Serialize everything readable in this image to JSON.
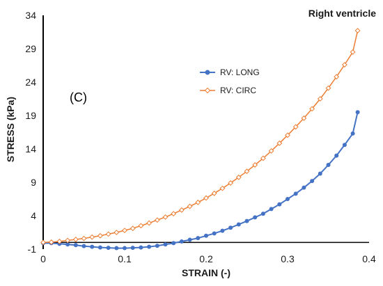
{
  "chart_data": {
    "type": "line",
    "title": "Right ventricle",
    "panel_label": "(C)",
    "xlabel": "STRAIN (-)",
    "ylabel": "STRESS (kPa)",
    "xlim": [
      0,
      0.4
    ],
    "ylim": [
      -1,
      34
    ],
    "x_ticks": [
      0,
      0.1,
      0.2,
      0.3,
      0.4
    ],
    "x_tick_labels": [
      "0",
      "0.1",
      "0.2",
      "0.3",
      "0.4"
    ],
    "y_ticks": [
      -1,
      4,
      9,
      14,
      19,
      24,
      29,
      34
    ],
    "y_tick_labels": [
      "-1",
      "4",
      "9",
      "14",
      "19",
      "24",
      "29",
      "34"
    ],
    "grid": false,
    "legend_position": "center-left",
    "x": [
      0,
      0.01,
      0.02,
      0.03,
      0.04,
      0.05,
      0.06,
      0.07,
      0.08,
      0.09,
      0.1,
      0.11,
      0.12,
      0.13,
      0.14,
      0.15,
      0.16,
      0.17,
      0.18,
      0.19,
      0.2,
      0.21,
      0.22,
      0.23,
      0.24,
      0.25,
      0.26,
      0.27,
      0.28,
      0.29,
      0.3,
      0.31,
      0.32,
      0.33,
      0.34,
      0.35,
      0.36,
      0.37,
      0.38,
      0.386
    ],
    "series": [
      {
        "name": "RV: LONG",
        "color": "#4472C4",
        "marker": "circle",
        "values": [
          -0.1,
          -0.1,
          -0.2,
          -0.3,
          -0.4,
          -0.55,
          -0.65,
          -0.75,
          -0.8,
          -0.85,
          -0.85,
          -0.8,
          -0.75,
          -0.65,
          -0.5,
          -0.3,
          -0.1,
          0.15,
          0.4,
          0.65,
          1.0,
          1.35,
          1.75,
          2.2,
          2.7,
          3.2,
          3.75,
          4.3,
          5.0,
          5.7,
          6.5,
          7.3,
          8.2,
          9.2,
          10.3,
          11.6,
          13.0,
          14.6,
          16.3,
          19.5
        ]
      },
      {
        "name": "RV: CIRC",
        "color": "#ED7D31",
        "marker": "diamond-open",
        "values": [
          0.0,
          0.05,
          0.15,
          0.3,
          0.45,
          0.6,
          0.8,
          1.0,
          1.25,
          1.5,
          1.8,
          2.1,
          2.5,
          2.9,
          3.35,
          3.8,
          4.3,
          4.85,
          5.4,
          6.0,
          6.65,
          7.35,
          8.1,
          8.9,
          9.75,
          10.65,
          11.6,
          12.6,
          13.7,
          14.85,
          16.05,
          17.3,
          18.6,
          20.0,
          21.5,
          23.1,
          24.8,
          26.6,
          28.5,
          31.7
        ]
      }
    ]
  }
}
